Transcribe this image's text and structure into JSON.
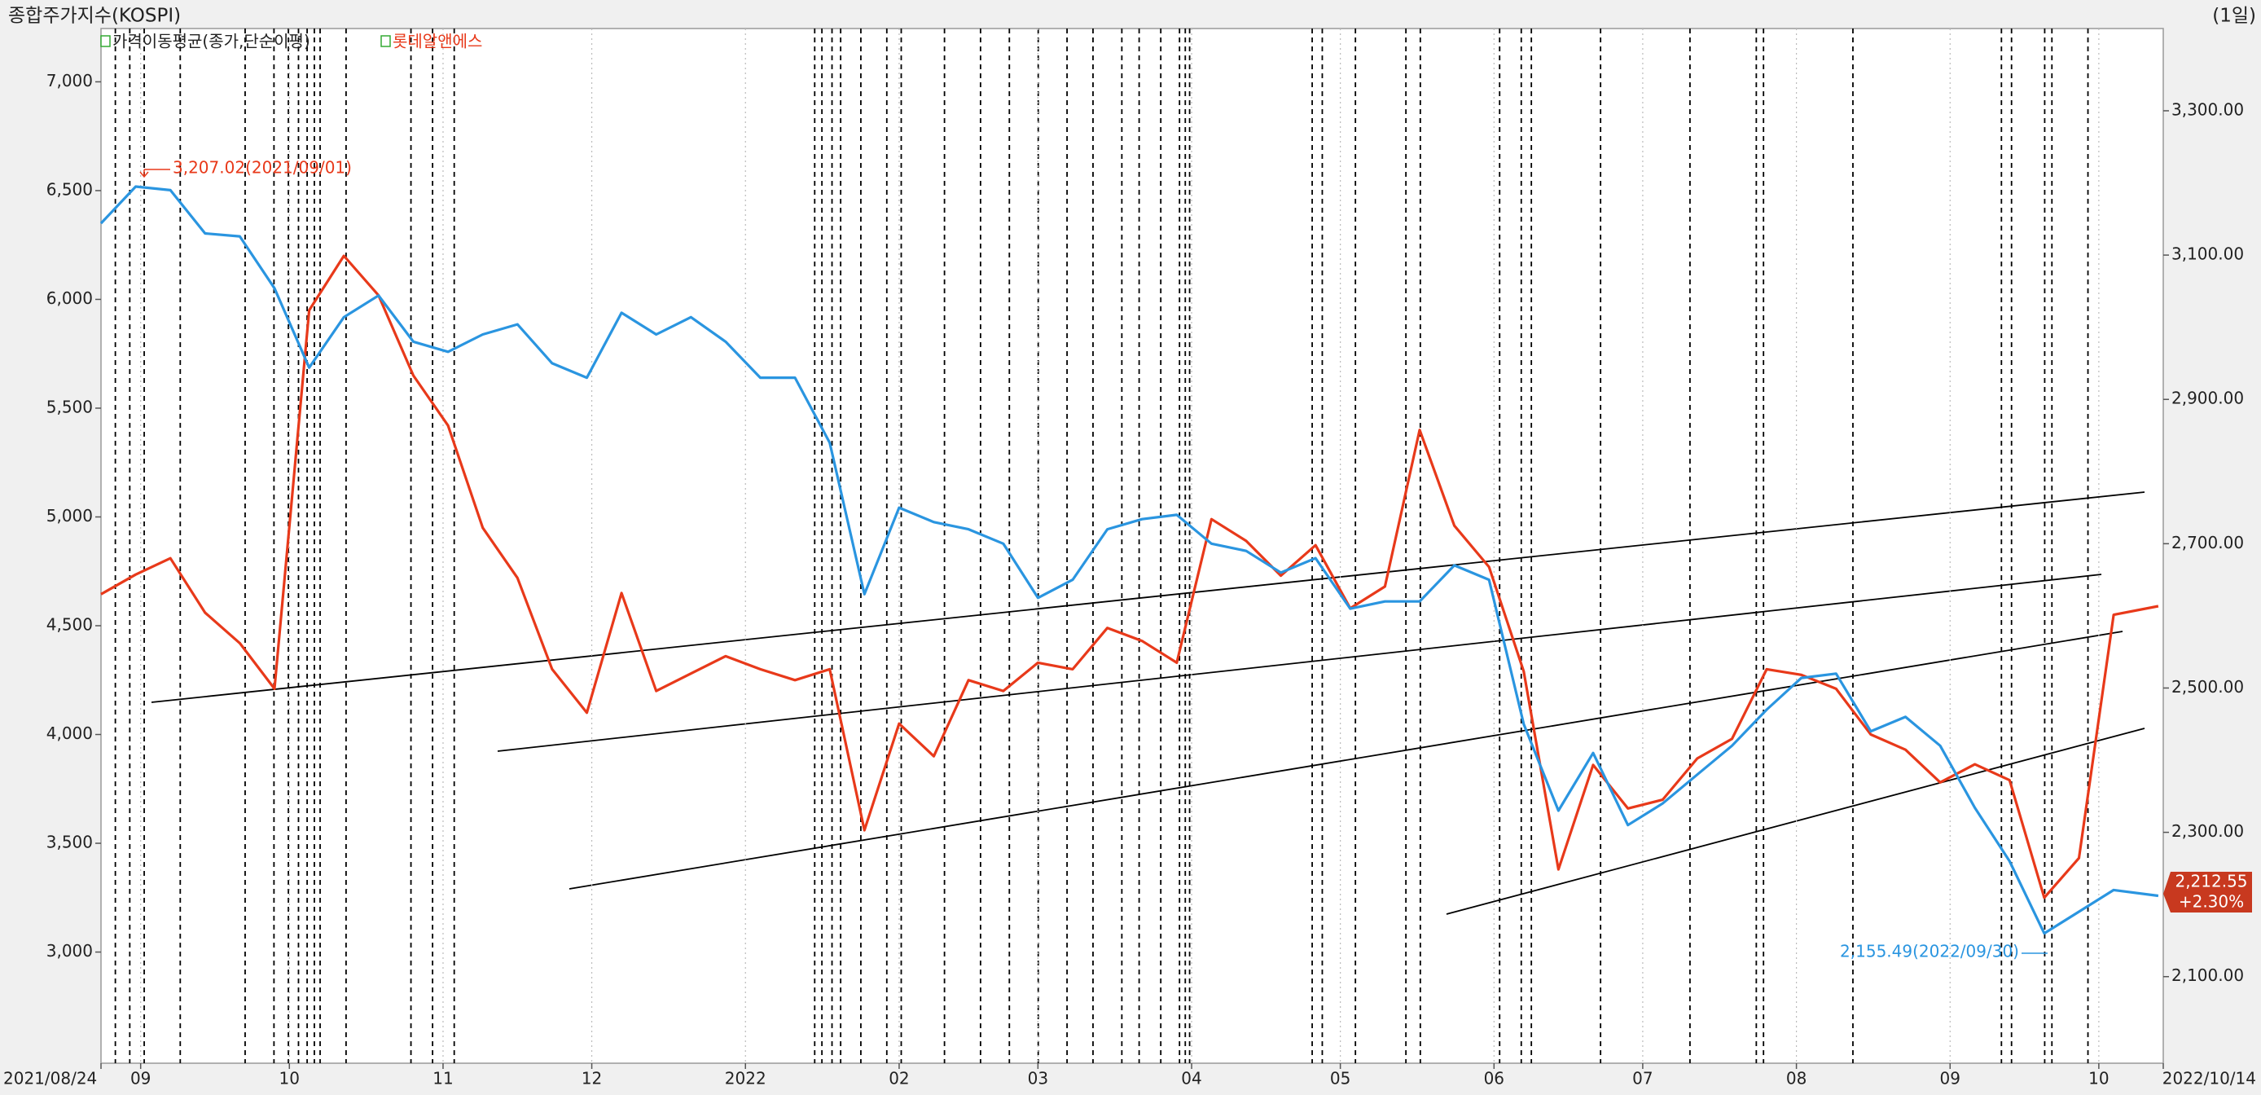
{
  "chart_data": {
    "type": "line",
    "title": "종합주가지수(KOSPI)",
    "period": "(1일)",
    "indicator": "가격이동평균(종가,단순이평)",
    "x": [
      "2021/08/24",
      "2021/08/31",
      "2021/09/07",
      "2021/09/14",
      "2021/09/21",
      "2021/09/28",
      "2021/10/05",
      "2021/10/12",
      "2021/10/19",
      "2021/10/26",
      "2021/11/02",
      "2021/11/09",
      "2021/11/16",
      "2021/11/23",
      "2021/11/30",
      "2021/12/07",
      "2021/12/14",
      "2021/12/21",
      "2021/12/28",
      "2022/01/04",
      "2022/01/11",
      "2022/01/18",
      "2022/01/25",
      "2022/02/01",
      "2022/02/08",
      "2022/02/15",
      "2022/02/22",
      "2022/03/01",
      "2022/03/08",
      "2022/03/15",
      "2022/03/22",
      "2022/03/29",
      "2022/04/05",
      "2022/04/12",
      "2022/04/19",
      "2022/04/26",
      "2022/05/03",
      "2022/05/10",
      "2022/05/17",
      "2022/05/24",
      "2022/05/31",
      "2022/06/07",
      "2022/06/14",
      "2022/06/21",
      "2022/06/28",
      "2022/07/05",
      "2022/07/12",
      "2022/07/19",
      "2022/07/26",
      "2022/08/02",
      "2022/08/09",
      "2022/08/16",
      "2022/08/23",
      "2022/08/30",
      "2022/09/06",
      "2022/09/13",
      "2022/09/20",
      "2022/09/27",
      "2022/10/04",
      "2022/10/13"
    ],
    "series": [
      {
        "name": "롯데알앤에스",
        "color": "#e8391a",
        "axis": "y",
        "values": [
          4645,
          4735,
          4810,
          4560,
          4420,
          4210,
          5950,
          6200,
          6018,
          5650,
          5420,
          4950,
          4720,
          4300,
          4100,
          4650,
          4200,
          4280,
          4360,
          4300,
          4250,
          4300,
          3560,
          4050,
          3900,
          4250,
          4200,
          4330,
          4300,
          4490,
          4430,
          4330,
          4990,
          4890,
          4730,
          4870,
          4580,
          4680,
          5400,
          4960,
          4770,
          4290,
          3380,
          3860,
          3660,
          3700,
          3890,
          3980,
          4300,
          4274,
          4210,
          4000,
          3930,
          3780,
          3863,
          3790,
          3250,
          3432,
          4550,
          4590
        ]
      },
      {
        "color": "#2a95e0",
        "axis": "y2",
        "values": [
          3144,
          3195,
          3190,
          3130,
          3126,
          3054,
          2944,
          3014,
          3044,
          2980,
          2966,
          2990,
          3004,
          2950,
          2930,
          3020,
          2990,
          3014,
          2980,
          2930,
          2930,
          2840,
          2630,
          2750,
          2730,
          2720,
          2700,
          2625,
          2650,
          2720,
          2734,
          2740,
          2700,
          2690,
          2660,
          2680,
          2610,
          2620,
          2620,
          2670,
          2650,
          2450,
          2330,
          2410,
          2310,
          2340,
          2380,
          2420,
          2470,
          2514,
          2520,
          2440,
          2460,
          2420,
          2334,
          2260,
          2160,
          2190,
          2220,
          2212
        ]
      }
    ],
    "xlim": [
      "2021/08/24",
      "2022/10/14"
    ],
    "xticks": [
      "2021/08/24",
      {
        "value": "2021/09/01",
        "label": "09"
      },
      {
        "value": "2021/10/01",
        "label": "10"
      },
      {
        "value": "2021/11/01",
        "label": "11"
      },
      {
        "value": "2021/12/01",
        "label": "12"
      },
      {
        "value": "2022/01/01",
        "label": "2022"
      },
      {
        "value": "2022/02/01",
        "label": "02"
      },
      {
        "value": "2022/03/01",
        "label": "03"
      },
      {
        "value": "2022/04/01",
        "label": "04"
      },
      {
        "value": "2022/05/01",
        "label": "05"
      },
      {
        "value": "2022/06/01",
        "label": "06"
      },
      {
        "value": "2022/07/01",
        "label": "07"
      },
      {
        "value": "2022/08/01",
        "label": "08"
      },
      {
        "value": "2022/09/01",
        "label": "09"
      },
      {
        "value": "2022/10/01",
        "label": "10"
      },
      "2022/10/14"
    ],
    "ylim": [
      2489,
      7245
    ],
    "yticks": [
      {
        "value": 3000,
        "label": "3,000"
      },
      {
        "value": 3500,
        "label": "3,500"
      },
      {
        "value": 4000,
        "label": "4,000"
      },
      {
        "value": 4500,
        "label": "4,500"
      },
      {
        "value": 5000,
        "label": "5,000"
      },
      {
        "value": 5500,
        "label": "5,500"
      },
      {
        "value": 6000,
        "label": "6,000"
      },
      {
        "value": 6500,
        "label": "6,500"
      },
      {
        "value": 7000,
        "label": "7,000"
      }
    ],
    "y2lim": [
      1980,
      3414
    ],
    "y2ticks": [
      {
        "value": 2100,
        "label": "2,100.00"
      },
      {
        "value": 2300,
        "label": "2,300.00"
      },
      {
        "value": 2500,
        "label": "2,500.00"
      },
      {
        "value": 2700,
        "label": "2,700.00"
      },
      {
        "value": 2900,
        "label": "2,900.00"
      },
      {
        "value": 3100,
        "label": "3,100.00"
      },
      {
        "value": 3300,
        "label": "3,300.00"
      }
    ],
    "annotations": [
      "3,207.02(2021/09/01)",
      "2,155.49(2022/09/30)"
    ],
    "last_value": {
      "value": 2212.55,
      "label": "2,212.55",
      "change": "+2.30%"
    },
    "grid": true
  }
}
